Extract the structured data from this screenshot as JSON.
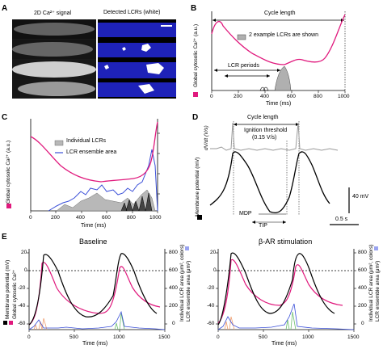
{
  "panels": {
    "A": {
      "letter": "A",
      "left_title": "2D Ca²⁺ signal",
      "right_title": "Detected LCRs (white)"
    },
    "B": {
      "letter": "B",
      "cycle_length": "Cycle length",
      "legend": "2 example LCRs are shown",
      "lcr_periods": "LCR periods",
      "ylabel": "Global cytosolic Ca²⁺ (a.u.)",
      "xlabel": "Time (ms)",
      "xticks": [
        "0",
        "200",
        "400",
        "600",
        "800",
        "1000"
      ]
    },
    "C": {
      "letter": "C",
      "legend_individual": "Individual LCRs",
      "legend_ensemble": "LCR ensemble area",
      "ylabel": "Global cytosolic Ca²⁺ (a.u.)",
      "xlabel": "Time (ms)",
      "xticks": [
        "0",
        "200",
        "400",
        "600",
        "800",
        "1000"
      ]
    },
    "D": {
      "letter": "D",
      "cycle_length": "Cycle length",
      "dvdt_label": "dV/dt (V/s)",
      "ignition_threshold": "Ignition threshold",
      "ignition_value": "(0.15 V/s)",
      "ylabel": "Membrane potential (mV)",
      "scale_v": "40 mV",
      "scale_t": "0.5 s",
      "mdp": "MDP",
      "tip": "TIP"
    },
    "E": {
      "letter": "E",
      "left_title": "Baseline",
      "right_title": "β-AR stimulation",
      "ylabel_left": "Membrane potential (mV)",
      "ylabel_left2": "Global cytosolic Ca²⁺",
      "ylabel_right": "Individual LCR area (μm², colors)",
      "ylabel_right2": "LCR ensemble area (μm²)",
      "xlabel": "Time (ms)",
      "yticks_left": [
        "20",
        "0",
        "-20",
        "-40",
        "-60"
      ],
      "yticks_right": [
        "800",
        "600",
        "400",
        "200",
        "0"
      ],
      "xticks": [
        "0",
        "500",
        "1000",
        "1500"
      ]
    }
  },
  "colors": {
    "magenta": "#e0197d",
    "blue": "#3a4fd8",
    "grey": "#a8a8a8",
    "image_blue": "#1e22b8"
  },
  "chart_data": [
    {
      "type": "line",
      "panel": "B",
      "xlabel": "Time (ms)",
      "ylabel": "Global cytosolic Ca²⁺ (a.u.)",
      "xlim": [
        0,
        1000
      ],
      "series": [
        {
          "x": [
            0,
            30,
            60,
            100,
            150,
            200,
            250,
            300,
            350,
            400,
            450,
            500,
            550,
            600,
            650,
            700,
            750,
            800,
            850,
            900,
            940,
            970,
            990,
            1000
          ],
          "y": [
            0.78,
            0.92,
            0.93,
            0.86,
            0.78,
            0.66,
            0.56,
            0.48,
            0.42,
            0.38,
            0.36,
            0.34,
            0.36,
            0.42,
            0.42,
            0.4,
            0.38,
            0.36,
            0.38,
            0.46,
            0.62,
            0.82,
            0.98,
            1.0
          ]
        }
      ]
    },
    {
      "type": "area",
      "panel": "C",
      "xlabel": "Time (ms)",
      "ylabel": "Global cytosolic Ca²⁺ (a.u.)",
      "xlim": [
        0,
        1000
      ],
      "series": [
        {
          "name": "Global cytosolic Ca²⁺",
          "x": [
            0,
            50,
            100,
            150,
            200,
            300,
            400,
            500,
            550,
            600,
            700,
            800,
            900,
            950,
            980,
            1000
          ],
          "y": [
            0.92,
            0.86,
            0.74,
            0.64,
            0.56,
            0.46,
            0.4,
            0.38,
            0.4,
            0.4,
            0.36,
            0.36,
            0.4,
            0.55,
            0.86,
            1.0
          ]
        },
        {
          "name": "LCR ensemble area",
          "x": [
            0,
            100,
            200,
            300,
            400,
            450,
            500,
            550,
            600,
            700,
            800,
            850,
            900,
            950,
            1000
          ],
          "y": [
            0,
            0,
            0.02,
            0.04,
            0.08,
            0.14,
            0.1,
            0.12,
            0.08,
            0.1,
            0.12,
            0.16,
            0.24,
            0.3,
            0.05
          ]
        }
      ]
    },
    {
      "type": "line",
      "panel": "E",
      "title": "Baseline",
      "xlabel": "Time (ms)",
      "xlim": [
        0,
        1500
      ],
      "ylim": [
        -70,
        25
      ],
      "series": [
        {
          "name": "Membrane potential",
          "x": [
            0,
            100,
            150,
            200,
            300,
            400,
            500,
            600,
            700,
            800,
            900,
            1000,
            1050,
            1100,
            1200,
            1300,
            1400
          ],
          "y": [
            -60,
            -45,
            20,
            18,
            5,
            -30,
            -58,
            -62,
            -60,
            -55,
            -45,
            -30,
            20,
            18,
            0,
            -35,
            -60
          ]
        },
        {
          "name": "Global cytosolic Ca²⁺",
          "x": [
            0,
            150,
            200,
            250,
            300,
            400,
            500,
            600,
            700,
            800,
            900,
            1000,
            1100,
            1150,
            1200,
            1300,
            1400
          ],
          "y": [
            -62,
            -55,
            10,
            12,
            -10,
            -35,
            -45,
            -50,
            -52,
            -52,
            -50,
            -45,
            10,
            10,
            -15,
            -40,
            -50
          ]
        }
      ]
    },
    {
      "type": "line",
      "panel": "E",
      "title": "β-AR stimulation",
      "xlabel": "Time (ms)",
      "xlim": [
        0,
        1500
      ],
      "ylim": [
        -70,
        25
      ],
      "series": [
        {
          "name": "Membrane potential",
          "x": [
            0,
            100,
            150,
            200,
            300,
            400,
            500,
            600,
            700,
            800,
            850,
            900,
            1000,
            1100,
            1200,
            1300,
            1400
          ],
          "y": [
            -60,
            -40,
            20,
            18,
            0,
            -30,
            -55,
            -58,
            -55,
            -45,
            -20,
            20,
            10,
            -20,
            -50,
            -60,
            -62
          ]
        },
        {
          "name": "Global cytosolic Ca²⁺",
          "x": [
            0,
            150,
            200,
            250,
            300,
            400,
            500,
            600,
            700,
            800,
            900,
            950,
            1000,
            1100,
            1200,
            1300,
            1400
          ],
          "y": [
            -62,
            -50,
            12,
            10,
            -15,
            -40,
            -48,
            -52,
            -52,
            -48,
            -30,
            12,
            8,
            -20,
            -42,
            -50,
            -54
          ]
        }
      ]
    }
  ]
}
